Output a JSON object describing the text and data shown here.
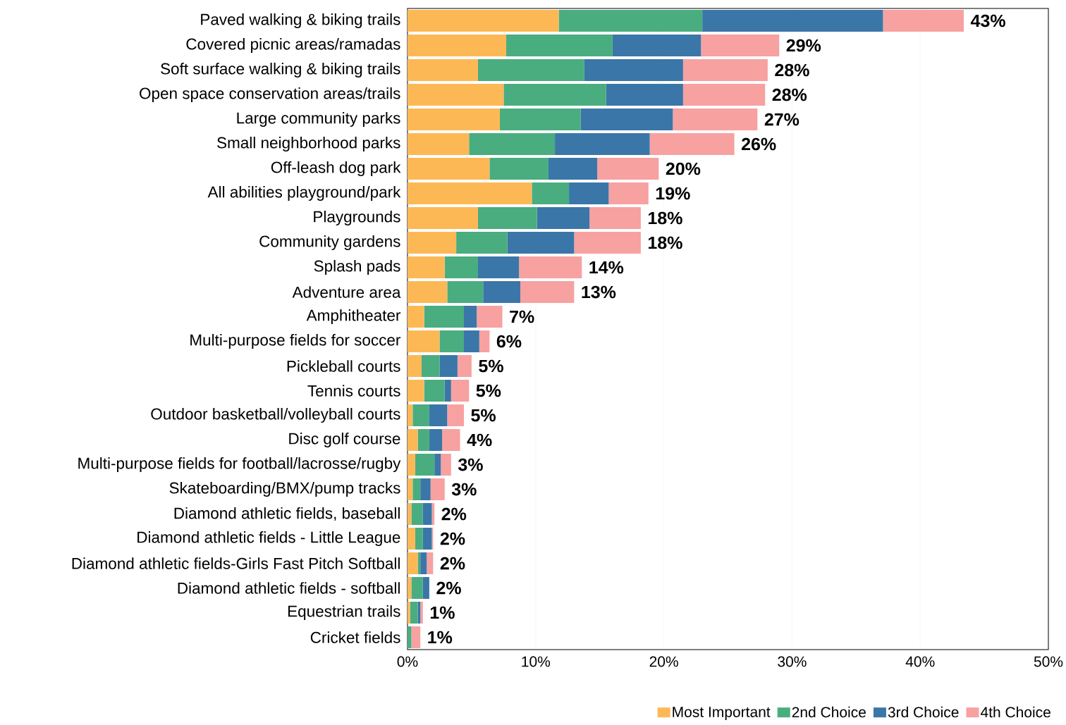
{
  "chart_data": {
    "type": "bar",
    "orientation": "horizontal",
    "stacked": true,
    "categories": [
      "Paved walking & biking trails",
      "Covered picnic areas/ramadas",
      "Soft surface walking & biking trails",
      "Open space conservation areas/trails",
      "Large community parks",
      "Small neighborhood parks",
      "Off-leash dog park",
      "All abilities playground/park",
      "Playgrounds",
      "Community gardens",
      "Splash pads",
      "Adventure area",
      "Amphitheater",
      "Multi-purpose fields for soccer",
      "Pickleball courts",
      "Tennis courts",
      "Outdoor basketball/volleyball courts",
      "Disc golf course",
      "Multi-purpose fields for football/lacrosse/rugby",
      "Skateboarding/BMX/pump tracks",
      "Diamond athletic fields, baseball",
      "Diamond athletic fields - Little League",
      "Diamond athletic fields-Girls Fast Pitch Softball",
      "Diamond athletic fields - softball",
      "Equestrian trails",
      "Cricket fields"
    ],
    "series": [
      {
        "name": "Most Important",
        "color": "#fdb856",
        "values": [
          11.8,
          7.7,
          5.5,
          7.5,
          7.2,
          4.8,
          6.4,
          9.7,
          5.5,
          3.8,
          2.9,
          3.1,
          1.3,
          2.5,
          1.1,
          1.3,
          0.4,
          0.8,
          0.6,
          0.4,
          0.3,
          0.6,
          0.8,
          0.3,
          0.2,
          0
        ]
      },
      {
        "name": "2nd Choice",
        "color": "#49ad80",
        "values": [
          11.2,
          8.3,
          8.3,
          8.0,
          6.3,
          6.7,
          4.6,
          2.9,
          4.6,
          4.0,
          2.6,
          2.8,
          3.1,
          1.9,
          1.4,
          1.6,
          1.3,
          0.9,
          1.5,
          0.6,
          0.9,
          0.6,
          0.2,
          0.9,
          0.6,
          0.3
        ]
      },
      {
        "name": "3rd Choice",
        "color": "#3b76a9",
        "values": [
          14.1,
          6.9,
          7.7,
          6.0,
          7.2,
          7.4,
          3.8,
          3.1,
          4.1,
          5.2,
          3.2,
          2.9,
          1.0,
          1.2,
          1.4,
          0.5,
          1.4,
          1.0,
          0.5,
          0.8,
          0.7,
          0.7,
          0.5,
          0.5,
          0.2,
          0
        ]
      },
      {
        "name": "4th Choice",
        "color": "#f7a1a1",
        "values": [
          6.3,
          6.1,
          6.6,
          6.4,
          6.6,
          6.6,
          4.8,
          3.1,
          4.0,
          5.2,
          4.9,
          4.2,
          2.0,
          0.8,
          1.1,
          1.4,
          1.3,
          1.4,
          0.8,
          1.1,
          0.2,
          0.1,
          0.5,
          0,
          0.2,
          0.7
        ]
      }
    ],
    "totals": [
      "43%",
      "29%",
      "28%",
      "28%",
      "27%",
      "26%",
      "20%",
      "19%",
      "18%",
      "18%",
      "14%",
      "13%",
      "7%",
      "6%",
      "5%",
      "5%",
      "5%",
      "4%",
      "3%",
      "3%",
      "2%",
      "2%",
      "2%",
      "2%",
      "1%",
      "1%"
    ],
    "xlim": [
      0,
      50
    ],
    "xticks": [
      {
        "value": 0,
        "label": "0%"
      },
      {
        "value": 10,
        "label": "10%"
      },
      {
        "value": 20,
        "label": "20%"
      },
      {
        "value": 30,
        "label": "30%"
      },
      {
        "value": 40,
        "label": "40%"
      },
      {
        "value": 50,
        "label": "50%"
      }
    ],
    "grid": "x",
    "legend": "bottom right"
  }
}
